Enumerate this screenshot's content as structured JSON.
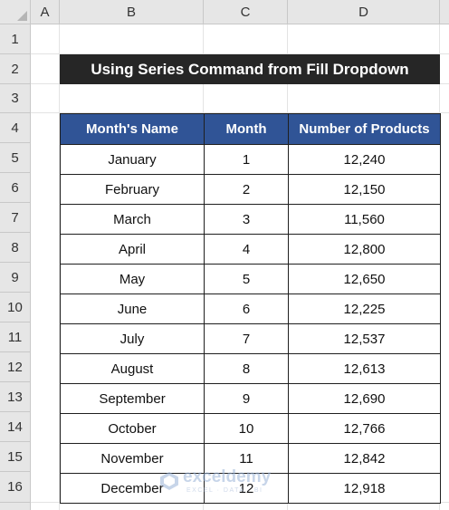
{
  "spreadsheet": {
    "columns": [
      "A",
      "B",
      "C",
      "D"
    ],
    "rows": [
      "1",
      "2",
      "3",
      "4",
      "5",
      "6",
      "7",
      "8",
      "9",
      "10",
      "11",
      "12",
      "13",
      "14",
      "15",
      "16"
    ]
  },
  "title": "Using Series Command from Fill Dropdown",
  "table": {
    "headers": [
      "Month's Name",
      "Month",
      "Number of Products"
    ],
    "rows": [
      [
        "January",
        "1",
        "12,240"
      ],
      [
        "February",
        "2",
        "12,150"
      ],
      [
        "March",
        "3",
        "11,560"
      ],
      [
        "April",
        "4",
        "12,800"
      ],
      [
        "May",
        "5",
        "12,650"
      ],
      [
        "June",
        "6",
        "12,225"
      ],
      [
        "July",
        "7",
        "12,537"
      ],
      [
        "August",
        "8",
        "12,613"
      ],
      [
        "September",
        "9",
        "12,690"
      ],
      [
        "October",
        "10",
        "12,766"
      ],
      [
        "November",
        "11",
        "12,842"
      ],
      [
        "December",
        "12",
        "12,918"
      ]
    ]
  },
  "watermark": {
    "name": "exceldemy",
    "tagline": "EXCEL · DATA · BI",
    "icon": "exceldemy-logo-icon"
  },
  "colors": {
    "header_fill": "#305496",
    "title_fill": "#262626",
    "sheet_header": "#e6e6e6"
  }
}
